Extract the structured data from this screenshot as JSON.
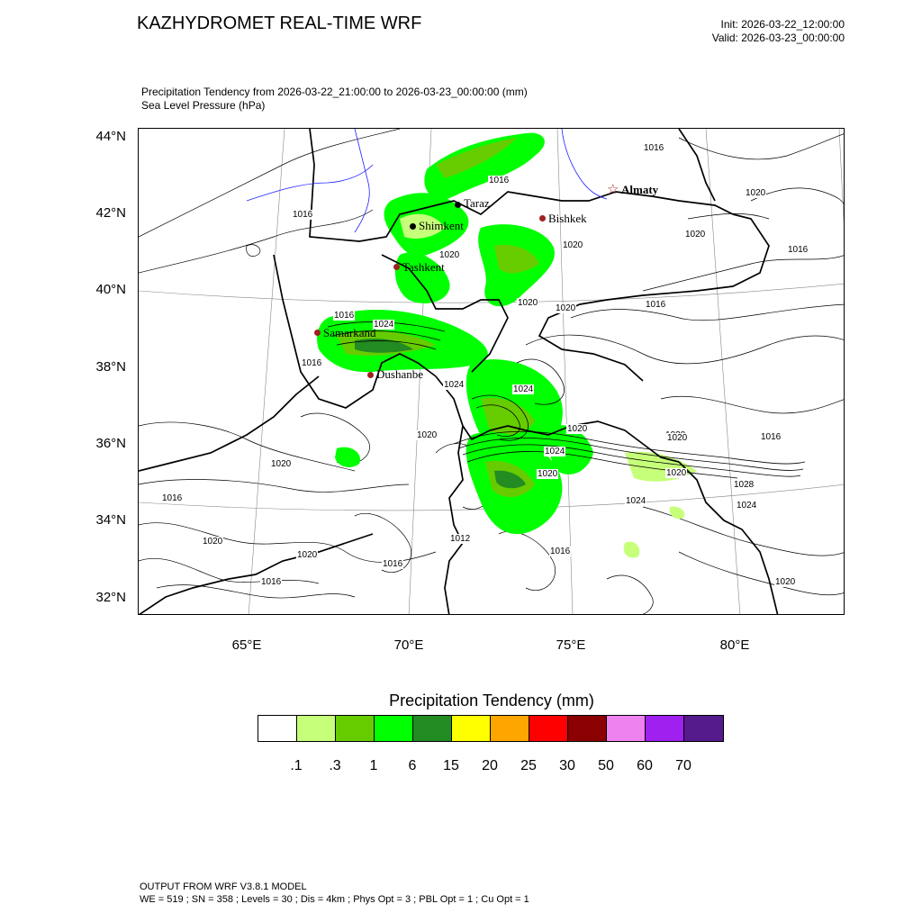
{
  "header": {
    "title": "KAZHYDROMET REAL-TIME WRF",
    "init": "Init: 2026-03-22_12:00:00",
    "valid": "Valid: 2026-03-23_00:00:00",
    "field1": "Precipitation Tendency from 2026-03-22_21:00:00 to 2026-03-23_00:00:00   (mm)",
    "field2": "Sea Level Pressure   (hPa)"
  },
  "axes": {
    "lat_labels": [
      "44°N",
      "42°N",
      "40°N",
      "38°N",
      "36°N",
      "34°N",
      "32°N"
    ],
    "lon_labels": [
      "65°E",
      "70°E",
      "75°E",
      "80°E"
    ]
  },
  "cities": [
    {
      "name": "Almaty",
      "color": "#a02020",
      "marker": "star"
    },
    {
      "name": "Taraz",
      "color": "#000000",
      "marker": "dot"
    },
    {
      "name": "Bishkek",
      "color": "#a02020",
      "marker": "dot"
    },
    {
      "name": "Shimkent",
      "color": "#000000",
      "marker": "dot"
    },
    {
      "name": "Tashkent",
      "color": "#a02020",
      "marker": "dot"
    },
    {
      "name": "Samarkand",
      "color": "#a02020",
      "marker": "dot"
    },
    {
      "name": "Dushanbe",
      "color": "#a02020",
      "marker": "dot"
    }
  ],
  "contour_labels": [
    "1016",
    "1016",
    "1016",
    "1020",
    "1020",
    "1016",
    "1020",
    "1020",
    "1020",
    "1016",
    "1020",
    "1016",
    "1024",
    "1024",
    "1020",
    "1016",
    "1020",
    "1024",
    "1020",
    "1016",
    "1020",
    "1024",
    "1020",
    "1028",
    "1016",
    "1020",
    "1012",
    "1024",
    "1020",
    "1016",
    "1016",
    "1020",
    "1016",
    "1024",
    "1020",
    "1016",
    "1020"
  ],
  "legend": {
    "title": "Precipitation Tendency  (mm)",
    "colors": [
      "#ffffff",
      "#c6ff7a",
      "#66cc00",
      "#00ff00",
      "#228b22",
      "#ffff00",
      "#ffa500",
      "#ff0000",
      "#8b0000",
      "#ee82ee",
      "#a020f0",
      "#551a8b"
    ],
    "ticks": [
      ".1",
      ".3",
      "1",
      "6",
      "15",
      "20",
      "25",
      "30",
      "50",
      "60",
      "70"
    ]
  },
  "footer": {
    "line1": "OUTPUT FROM WRF V3.8.1 MODEL",
    "line2": "WE = 519 ; SN = 358 ; Levels = 30 ; Dis = 4km ; Phys Opt = 3 ; PBL Opt = 1 ; Cu Opt = 1"
  }
}
